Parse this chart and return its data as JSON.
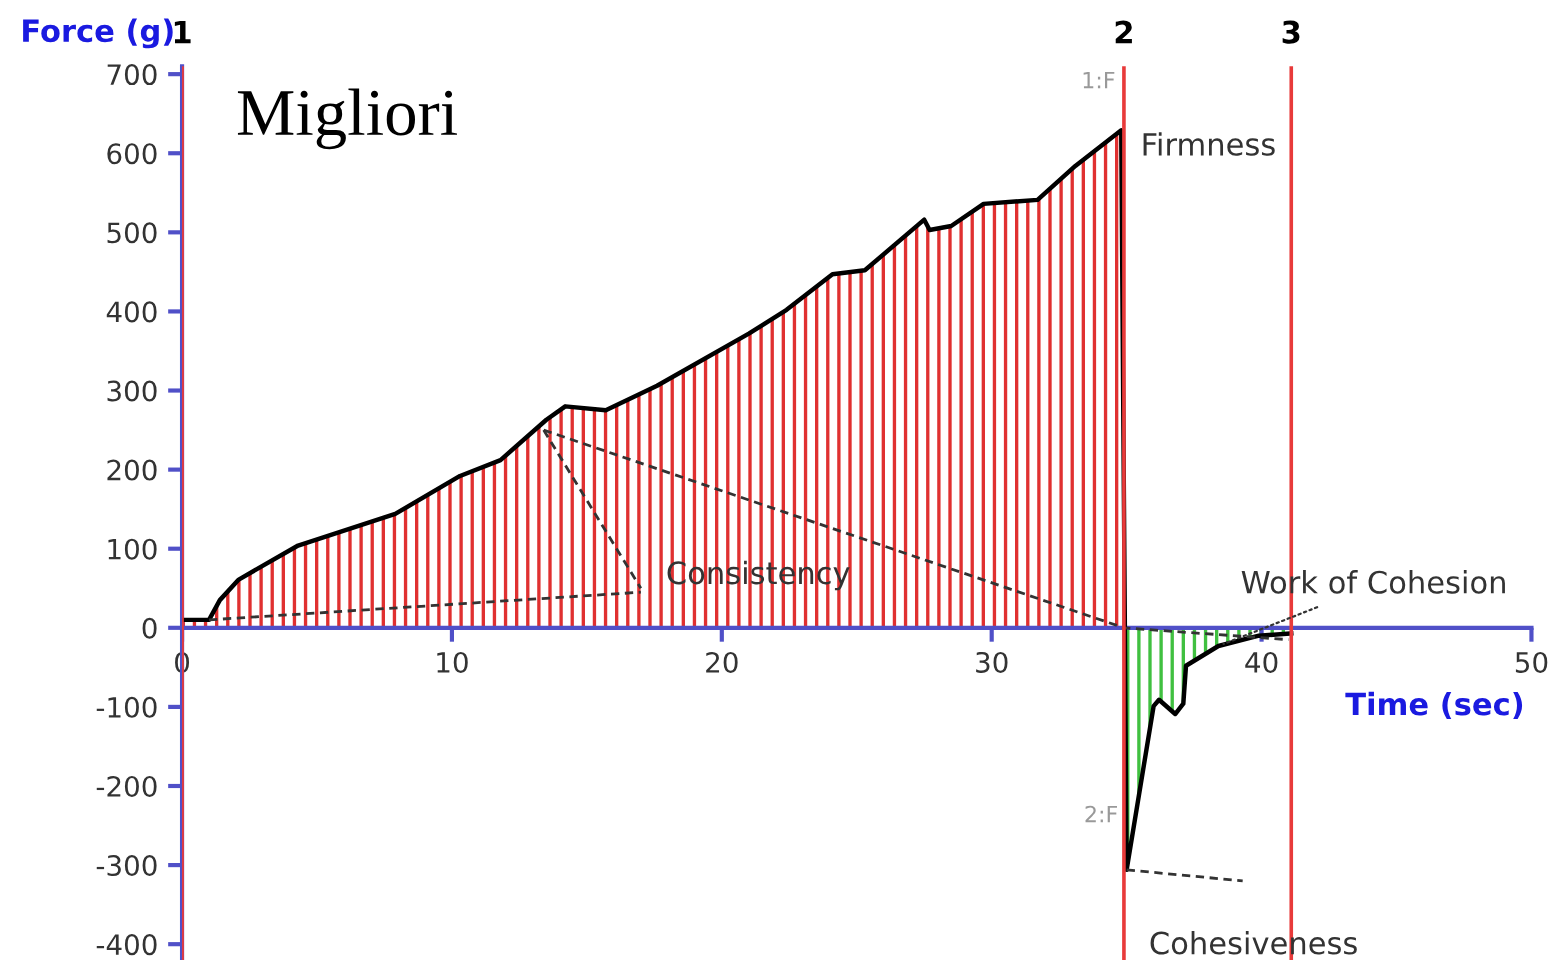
{
  "chart_data": {
    "type": "line",
    "xlabel": "Time (sec)",
    "ylabel": "Force (g)",
    "xlim": [
      0,
      50
    ],
    "ylim": [
      -420,
      710
    ],
    "xticks": [
      0,
      10,
      20,
      30,
      40,
      50
    ],
    "yticks": [
      -400,
      -300,
      -200,
      -100,
      0,
      100,
      200,
      300,
      400,
      500,
      600,
      700
    ],
    "grid": false,
    "series": [
      {
        "type": "area",
        "color": "#e03030",
        "x": [
          0,
          1,
          1.4,
          2.1,
          4.3,
          7.9,
          10.3,
          11.8,
          13.5,
          14.2,
          15.7,
          17.6,
          21.0,
          22.4,
          24.1,
          25.3,
          27.5,
          27.7,
          28.5,
          29.7,
          31.7,
          33.1,
          34.8,
          34.9
        ],
        "values": [
          10,
          10,
          35,
          61,
          104,
          144,
          192,
          212,
          263,
          280,
          275,
          306,
          372,
          402,
          447,
          452,
          516,
          503,
          508,
          536,
          541,
          584,
          629,
          0
        ]
      },
      {
        "type": "area",
        "color": "#40c040",
        "x": [
          34.9,
          35.0,
          36.0,
          36.2,
          36.8,
          37.1,
          37.2,
          38.4,
          39.9,
          41.1
        ],
        "values": [
          0,
          -306,
          -99,
          -91,
          -109,
          -96,
          -48,
          -23,
          -10,
          -7
        ]
      },
      {
        "color": "#000000",
        "x": [
          0,
          1,
          1.4,
          2.1,
          4.3,
          7.9,
          10.3,
          11.8,
          13.5,
          14.2,
          15.7,
          17.6,
          21.0,
          22.4,
          24.1,
          25.3,
          27.5,
          27.7,
          28.5,
          29.7,
          31.7,
          33.1,
          34.8,
          35.0,
          36.0,
          36.2,
          36.8,
          37.1,
          37.2,
          38.4,
          39.9,
          41.1
        ],
        "values": [
          10,
          10,
          35,
          61,
          104,
          144,
          192,
          212,
          263,
          280,
          275,
          306,
          372,
          402,
          447,
          452,
          516,
          503,
          508,
          536,
          541,
          584,
          629,
          -306,
          -99,
          -91,
          -109,
          -96,
          -48,
          -23,
          -10,
          -7
        ]
      },
      {
        "type": "line",
        "line_style": "dashed",
        "color": "#333333",
        "x": [
          1,
          17
        ],
        "values": [
          10,
          45
        ]
      },
      {
        "type": "line",
        "line_style": "dashed",
        "color": "#333333",
        "x": [
          13.4,
          17
        ],
        "values": [
          250,
          50
        ]
      },
      {
        "type": "line",
        "line_style": "dashed",
        "color": "#333333",
        "x": [
          13.4,
          34.9,
          41
        ],
        "values": [
          250,
          0,
          -15
        ]
      },
      {
        "type": "line",
        "line_style": "dashed",
        "color": "#333333",
        "x": [
          35.0,
          39.3
        ],
        "values": [
          -306,
          -320
        ]
      }
    ],
    "ref_lines": [
      {
        "axis": "x",
        "value": 0,
        "color": "#e83a3a"
      },
      {
        "axis": "x",
        "value": 34.9,
        "color": "#e83a3a"
      },
      {
        "axis": "x",
        "value": 41.1,
        "color": "#e83a3a"
      }
    ],
    "annotations": [
      "Migliori",
      {
        "text": "Firmness",
        "x": 34.9,
        "y": 629
      },
      {
        "text": "1:F",
        "x": 34.9,
        "y": 690
      },
      {
        "text": "Consistency",
        "x": 17,
        "y": 45
      },
      {
        "text": "Work of Cohesion",
        "x": 38.4,
        "y": -23
      },
      {
        "text": "2:F",
        "x": 35.0,
        "y": -238
      },
      {
        "text": "Cohesiveness",
        "x": 35.0,
        "y": -306
      },
      {
        "text": "1",
        "x": 0,
        "y": 710
      },
      {
        "text": "2",
        "x": 34.9,
        "y": 710
      },
      {
        "text": "3",
        "x": 41.1,
        "y": 710
      }
    ]
  }
}
